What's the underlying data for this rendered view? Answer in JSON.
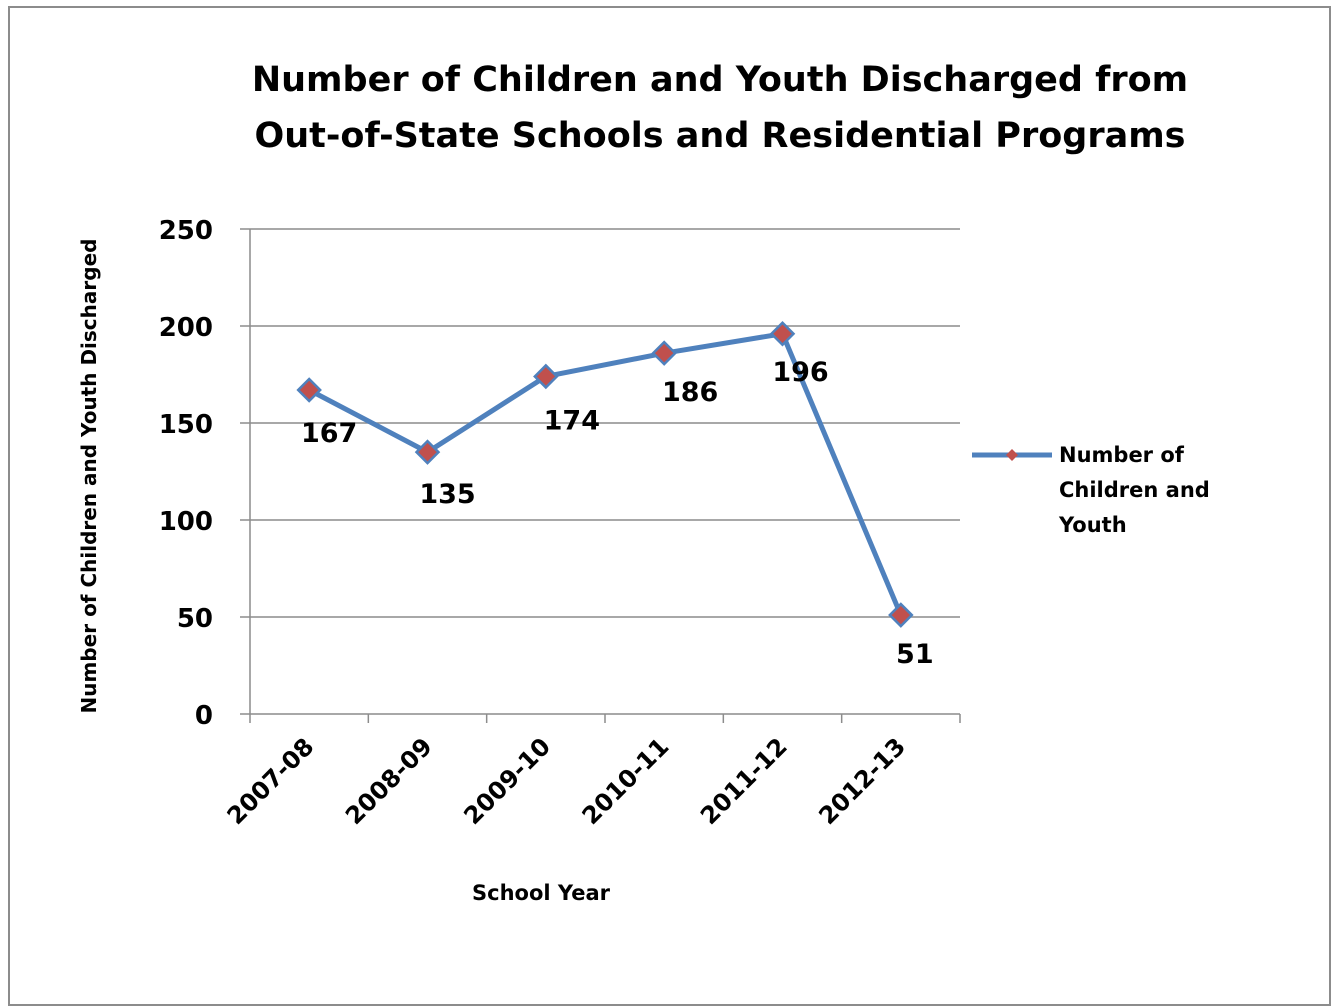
{
  "chart_data": {
    "type": "line",
    "title": "Number of Children and Youth Discharged from Out-of-State Schools and Residential Programs",
    "title_lines": [
      "Number of Children and Youth Discharged from",
      "Out-of-State Schools and Residential Programs"
    ],
    "xlabel": "School Year",
    "ylabel": "Number of Children and  Youth Discharged",
    "categories": [
      "2007-08",
      "2008-09",
      "2009-10",
      "2010-11",
      "2011-12",
      "2012-13"
    ],
    "series": [
      {
        "name": "Number of Children and Youth",
        "name_lines": [
          "Number of",
          "Children and",
          "Youth"
        ],
        "values": [
          167,
          135,
          174,
          186,
          196,
          51
        ],
        "line_color": "#4f81bd",
        "marker_color": "#c0504d",
        "marker": "diamond"
      }
    ],
    "data_labels": [
      "167",
      "135",
      "174",
      "186",
      "196",
      "51"
    ],
    "ylim": [
      0,
      250
    ],
    "yticks": [
      "0",
      "50",
      "100",
      "150",
      "200",
      "250"
    ],
    "grid": true,
    "legend_position": "right"
  }
}
